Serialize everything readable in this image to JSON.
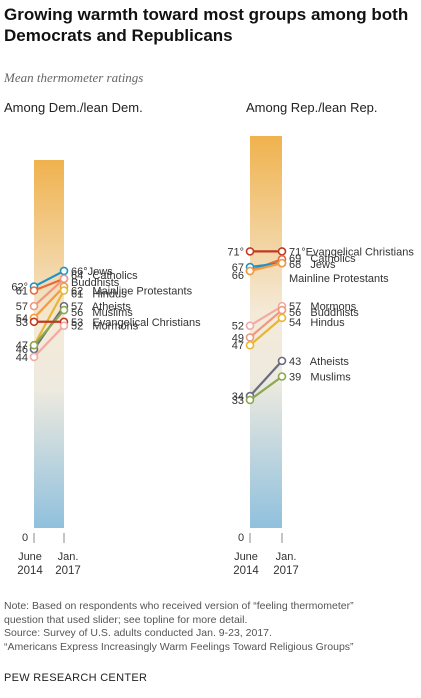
{
  "header": {
    "title": "Growing warmth toward most groups among both Democrats and Republicans",
    "subtitle": "Mean thermometer ratings"
  },
  "footer": {
    "notes": [
      "Note: Based on respondents who received version of “feeling thermometer”",
      "question that used slider; see topline for more detail.",
      "Source: Survey of U.S. adults conducted Jan. 9-23, 2017.",
      "“Americans Express Increasingly Warm  Feelings Toward Religious Groups”"
    ],
    "org": "PEW RESEARCH CENTER"
  },
  "colors": {
    "warm": "#f0b24e",
    "cool": "#8fc0dd",
    "Jews": "#1f93c7",
    "Catholics": "#e66b3a",
    "Buddhists": "#ef9880",
    "Mainline Protestants": "#f59a3e",
    "Hindus": "#e8b632",
    "Atheists": "#6b6b7d",
    "Muslims": "#8aa84f",
    "Evangelical Christians": "#c03a22",
    "Mormons": "#f2aaa3"
  },
  "chart_data": [
    {
      "type": "line",
      "title": "Among Dem./lean Dem.",
      "x": [
        "June 2014",
        "Jan. 2017"
      ],
      "ylim": [
        0,
        100
      ],
      "zero_label": "0",
      "series": [
        {
          "name": "Jews",
          "values": [
            62,
            66
          ],
          "left_label": "62°",
          "right_label": "66°Jews"
        },
        {
          "name": "Catholics",
          "values": [
            61,
            64
          ],
          "left_label": "61",
          "right_label": "64   Catholics"
        },
        {
          "name": "Buddhists",
          "values": [
            57,
            64
          ],
          "left_label": "57",
          "right_label": "Buddhists"
        },
        {
          "name": "Mainline Protestants",
          "values": [
            54,
            62
          ],
          "left_label": "54",
          "right_label": "62   Mainline Protestants"
        },
        {
          "name": "Hindus",
          "values": [
            47,
            61
          ],
          "left_label": "47",
          "right_label": "61   Hindus"
        },
        {
          "name": "Atheists",
          "values": [
            46,
            57
          ],
          "left_label": "46",
          "right_label": "57   Atheists"
        },
        {
          "name": "Muslims",
          "values": [
            47,
            56
          ],
          "left_label": "",
          "right_label": "56   Muslims"
        },
        {
          "name": "Evangelical Christians",
          "values": [
            53,
            53
          ],
          "left_label": "53",
          "right_label": "53   Evangelical Christians"
        },
        {
          "name": "Mormons",
          "values": [
            44,
            52
          ],
          "left_label": "44",
          "right_label": "52   Mormons"
        }
      ]
    },
    {
      "type": "line",
      "title": "Among Rep./lean Rep.",
      "x": [
        "June 2014",
        "Jan. 2017"
      ],
      "ylim": [
        0,
        100
      ],
      "zero_label": "0",
      "series": [
        {
          "name": "Evangelical Christians",
          "values": [
            71,
            71
          ],
          "left_label": "71°",
          "right_label": "71°Evangelical Christians"
        },
        {
          "name": "Catholics",
          "values": [
            66,
            69
          ],
          "left_label": "66",
          "right_label": "69   Catholics"
        },
        {
          "name": "Jews",
          "values": [
            67,
            68
          ],
          "left_label": "67",
          "right_label": "68   Jews"
        },
        {
          "name": "Mainline Protestants",
          "values": [
            66,
            68
          ],
          "left_label": "",
          "right_label": "Mainline Protestants"
        },
        {
          "name": "Mormons",
          "values": [
            52,
            57
          ],
          "left_label": "52",
          "right_label": "57   Mormons"
        },
        {
          "name": "Buddhists",
          "values": [
            49,
            56
          ],
          "left_label": "49",
          "right_label": "56   Buddhists"
        },
        {
          "name": "Hindus",
          "values": [
            47,
            54
          ],
          "left_label": "47",
          "right_label": "54   Hindus"
        },
        {
          "name": "Atheists",
          "values": [
            34,
            43
          ],
          "left_label": "34",
          "right_label": "43   Atheists"
        },
        {
          "name": "Muslims",
          "values": [
            33,
            39
          ],
          "left_label": "33",
          "right_label": "39   Muslims"
        }
      ]
    }
  ]
}
